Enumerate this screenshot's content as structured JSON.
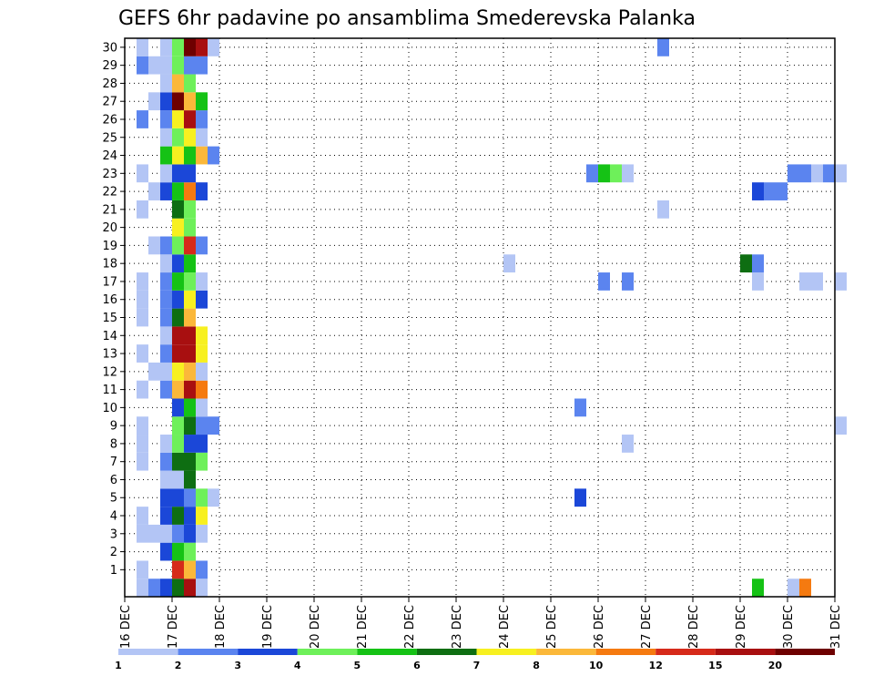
{
  "chart_data": {
    "type": "heatmap",
    "title": "GEFS 6hr padavine po ansamblima Smederevska Palanka",
    "y_categories": [
      "",
      "1",
      "2",
      "3",
      "4",
      "5",
      "6",
      "7",
      "8",
      "9",
      "10",
      "11",
      "12",
      "13",
      "14",
      "15",
      "16",
      "17",
      "18",
      "19",
      "20",
      "21",
      "22",
      "23",
      "24",
      "25",
      "26",
      "27",
      "28",
      "29",
      "30"
    ],
    "x_tick_labels": [
      "16 DEC",
      "17 DEC",
      "18 DEC",
      "19 DEC",
      "20 DEC",
      "21 DEC",
      "22 DEC",
      "23 DEC",
      "24 DEC",
      "25 DEC",
      "26 DEC",
      "27 DEC",
      "28 DEC",
      "29 DEC",
      "30 DEC",
      "31 DEC"
    ],
    "x_range_days": [
      16,
      31
    ],
    "time_step_hours": 6,
    "grid": "dotted",
    "legend": {
      "placement": "bottom",
      "labels": [
        "1",
        "2",
        "3",
        "4",
        "5",
        "6",
        "7",
        "8",
        "10",
        "12",
        "15",
        "20"
      ],
      "colors": [
        "#b3c5f5",
        "#5b84ef",
        "#1b47d8",
        "#6ef05a",
        "#15c215",
        "#0e6e12",
        "#f7f020",
        "#fbb83a",
        "#f57a10",
        "#d62a1a",
        "#a80f10",
        "#6e0000"
      ]
    },
    "cells": [
      [
        0,
        16.25,
        1
      ],
      [
        0,
        16.5,
        2
      ],
      [
        0,
        16.75,
        3
      ],
      [
        0,
        17.0,
        6
      ],
      [
        0,
        17.25,
        11
      ],
      [
        0,
        17.5,
        1
      ],
      [
        0,
        29.25,
        5
      ],
      [
        0,
        30.0,
        1
      ],
      [
        0,
        30.25,
        9
      ],
      [
        1,
        16.25,
        1
      ],
      [
        1,
        17.0,
        10
      ],
      [
        1,
        17.25,
        8
      ],
      [
        1,
        17.5,
        2
      ],
      [
        2,
        16.75,
        3
      ],
      [
        2,
        17.0,
        5
      ],
      [
        2,
        17.25,
        4
      ],
      [
        3,
        16.25,
        1
      ],
      [
        3,
        16.5,
        1
      ],
      [
        3,
        16.75,
        1
      ],
      [
        3,
        17.0,
        2
      ],
      [
        3,
        17.25,
        3
      ],
      [
        3,
        17.5,
        1
      ],
      [
        4,
        16.25,
        1
      ],
      [
        4,
        16.75,
        3
      ],
      [
        4,
        17.0,
        6
      ],
      [
        4,
        17.25,
        3
      ],
      [
        4,
        17.5,
        7
      ],
      [
        5,
        16.75,
        3
      ],
      [
        5,
        17.0,
        3
      ],
      [
        5,
        17.25,
        2
      ],
      [
        5,
        17.5,
        4
      ],
      [
        5,
        17.75,
        1
      ],
      [
        5,
        25.5,
        3
      ],
      [
        6,
        16.75,
        1
      ],
      [
        6,
        17.0,
        1
      ],
      [
        6,
        17.25,
        6
      ],
      [
        7,
        16.25,
        1
      ],
      [
        7,
        16.75,
        2
      ],
      [
        7,
        17.0,
        6
      ],
      [
        7,
        17.25,
        6
      ],
      [
        7,
        17.5,
        4
      ],
      [
        8,
        16.25,
        1
      ],
      [
        8,
        16.75,
        1
      ],
      [
        8,
        17.0,
        4
      ],
      [
        8,
        17.25,
        3
      ],
      [
        8,
        17.5,
        3
      ],
      [
        8,
        26.5,
        1
      ],
      [
        9,
        16.25,
        1
      ],
      [
        9,
        17.0,
        4
      ],
      [
        9,
        17.25,
        6
      ],
      [
        9,
        17.5,
        2
      ],
      [
        9,
        17.75,
        2
      ],
      [
        9,
        31.0,
        1
      ],
      [
        10,
        17.0,
        3
      ],
      [
        10,
        17.25,
        5
      ],
      [
        10,
        17.5,
        1
      ],
      [
        10,
        25.5,
        2
      ],
      [
        11,
        16.25,
        1
      ],
      [
        11,
        16.75,
        2
      ],
      [
        11,
        17.0,
        8
      ],
      [
        11,
        17.25,
        11
      ],
      [
        11,
        17.5,
        9
      ],
      [
        12,
        16.5,
        1
      ],
      [
        12,
        16.75,
        1
      ],
      [
        12,
        17.0,
        7
      ],
      [
        12,
        17.25,
        8
      ],
      [
        12,
        17.5,
        1
      ],
      [
        13,
        16.25,
        1
      ],
      [
        13,
        16.75,
        2
      ],
      [
        13,
        17.0,
        11
      ],
      [
        13,
        17.25,
        11
      ],
      [
        13,
        17.5,
        7
      ],
      [
        14,
        16.75,
        1
      ],
      [
        14,
        17.0,
        11
      ],
      [
        14,
        17.25,
        11
      ],
      [
        14,
        17.5,
        7
      ],
      [
        15,
        16.25,
        1
      ],
      [
        15,
        16.75,
        2
      ],
      [
        15,
        17.0,
        6
      ],
      [
        15,
        17.25,
        8
      ],
      [
        16,
        16.25,
        1
      ],
      [
        16,
        16.75,
        2
      ],
      [
        16,
        17.0,
        3
      ],
      [
        16,
        17.25,
        7
      ],
      [
        16,
        17.5,
        3
      ],
      [
        17,
        16.25,
        1
      ],
      [
        17,
        16.75,
        2
      ],
      [
        17,
        17.0,
        5
      ],
      [
        17,
        17.25,
        4
      ],
      [
        17,
        17.5,
        1
      ],
      [
        17,
        26.0,
        2
      ],
      [
        17,
        26.5,
        2
      ],
      [
        17,
        29.25,
        1
      ],
      [
        17,
        30.25,
        1
      ],
      [
        17,
        30.5,
        1
      ],
      [
        17,
        31.0,
        1
      ],
      [
        18,
        16.75,
        1
      ],
      [
        18,
        17.0,
        3
      ],
      [
        18,
        17.25,
        5
      ],
      [
        18,
        24.0,
        1
      ],
      [
        18,
        29.0,
        6
      ],
      [
        18,
        29.25,
        2
      ],
      [
        19,
        16.5,
        1
      ],
      [
        19,
        16.75,
        2
      ],
      [
        19,
        17.0,
        4
      ],
      [
        19,
        17.25,
        10
      ],
      [
        19,
        17.5,
        2
      ],
      [
        20,
        17.0,
        7
      ],
      [
        20,
        17.25,
        4
      ],
      [
        21,
        16.25,
        1
      ],
      [
        21,
        17.0,
        6
      ],
      [
        21,
        17.25,
        4
      ],
      [
        21,
        27.25,
        1
      ],
      [
        22,
        16.5,
        1
      ],
      [
        22,
        16.75,
        3
      ],
      [
        22,
        17.0,
        5
      ],
      [
        22,
        17.25,
        9
      ],
      [
        22,
        17.5,
        3
      ],
      [
        22,
        29.25,
        3
      ],
      [
        22,
        29.5,
        2
      ],
      [
        22,
        29.75,
        2
      ],
      [
        23,
        16.25,
        1
      ],
      [
        23,
        16.75,
        1
      ],
      [
        23,
        17.0,
        3
      ],
      [
        23,
        17.25,
        3
      ],
      [
        23,
        25.75,
        2
      ],
      [
        23,
        26.0,
        5
      ],
      [
        23,
        26.25,
        4
      ],
      [
        23,
        26.5,
        1
      ],
      [
        23,
        30.0,
        2
      ],
      [
        23,
        30.25,
        2
      ],
      [
        23,
        30.5,
        1
      ],
      [
        23,
        30.75,
        2
      ],
      [
        23,
        31.0,
        1
      ],
      [
        24,
        16.75,
        5
      ],
      [
        24,
        17.0,
        7
      ],
      [
        24,
        17.25,
        5
      ],
      [
        24,
        17.5,
        8
      ],
      [
        24,
        17.75,
        2
      ],
      [
        25,
        16.75,
        1
      ],
      [
        25,
        17.0,
        4
      ],
      [
        25,
        17.25,
        7
      ],
      [
        25,
        17.5,
        1
      ],
      [
        26,
        16.25,
        2
      ],
      [
        26,
        16.75,
        2
      ],
      [
        26,
        17.0,
        7
      ],
      [
        26,
        17.25,
        11
      ],
      [
        26,
        17.5,
        2
      ],
      [
        27,
        16.5,
        1
      ],
      [
        27,
        16.75,
        3
      ],
      [
        27,
        17.0,
        12
      ],
      [
        27,
        17.25,
        8
      ],
      [
        27,
        17.5,
        5
      ],
      [
        28,
        16.75,
        1
      ],
      [
        28,
        17.0,
        8
      ],
      [
        28,
        17.25,
        4
      ],
      [
        29,
        16.25,
        2
      ],
      [
        29,
        16.5,
        1
      ],
      [
        29,
        16.75,
        1
      ],
      [
        29,
        17.0,
        4
      ],
      [
        29,
        17.25,
        2
      ],
      [
        29,
        17.5,
        2
      ],
      [
        30,
        16.25,
        1
      ],
      [
        30,
        16.75,
        1
      ],
      [
        30,
        17.0,
        4
      ],
      [
        30,
        17.25,
        12
      ],
      [
        30,
        17.5,
        11
      ],
      [
        30,
        17.75,
        1
      ],
      [
        30,
        27.25,
        2
      ]
    ]
  }
}
